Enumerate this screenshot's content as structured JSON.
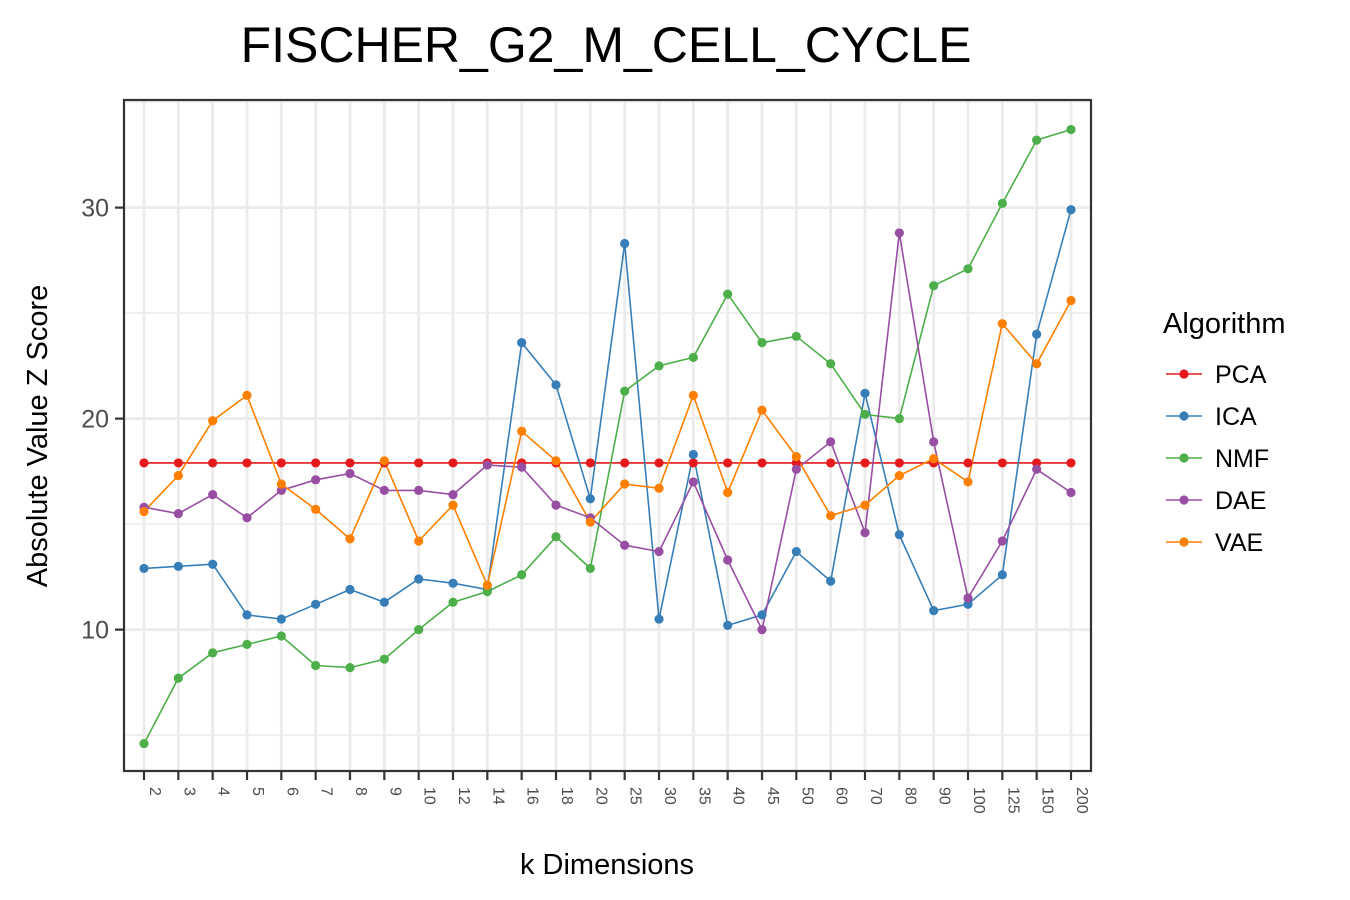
{
  "chart_data": {
    "type": "line",
    "title": "FISCHER_G2_M_CELL_CYCLE",
    "xlabel": "k Dimensions",
    "ylabel": "Absolute Value Z Score",
    "categories": [
      "2",
      "3",
      "4",
      "5",
      "6",
      "7",
      "8",
      "9",
      "10",
      "12",
      "14",
      "16",
      "18",
      "20",
      "25",
      "30",
      "35",
      "40",
      "45",
      "50",
      "60",
      "70",
      "80",
      "90",
      "100",
      "125",
      "150",
      "200"
    ],
    "ylim": [
      3.3,
      35.1
    ],
    "yticks": [
      10,
      20,
      30
    ],
    "grid": true,
    "legend": {
      "title": "Algorithm",
      "placement": "right"
    },
    "series": [
      {
        "name": "PCA",
        "color": "#e41a1c",
        "values": [
          17.9,
          17.9,
          17.9,
          17.9,
          17.9,
          17.9,
          17.9,
          17.9,
          17.9,
          17.9,
          17.9,
          17.9,
          17.9,
          17.9,
          17.9,
          17.9,
          17.9,
          17.9,
          17.9,
          17.9,
          17.9,
          17.9,
          17.9,
          17.9,
          17.9,
          17.9,
          17.9,
          17.9
        ]
      },
      {
        "name": "ICA",
        "color": "#377eb8",
        "values": [
          12.9,
          13.0,
          13.1,
          10.7,
          10.5,
          11.2,
          11.9,
          11.3,
          12.4,
          12.2,
          11.9,
          23.6,
          21.6,
          16.2,
          28.3,
          10.5,
          18.3,
          10.2,
          10.7,
          13.7,
          12.3,
          21.2,
          14.5,
          10.9,
          11.2,
          12.6,
          24.0,
          29.9
        ]
      },
      {
        "name": "NMF",
        "color": "#4daf4a",
        "values": [
          4.6,
          7.7,
          8.9,
          9.3,
          9.7,
          8.3,
          8.2,
          8.6,
          10.0,
          11.3,
          11.8,
          12.6,
          14.4,
          12.9,
          21.3,
          22.5,
          22.9,
          25.9,
          23.6,
          23.9,
          22.6,
          20.2,
          20.0,
          26.3,
          27.1,
          30.2,
          33.2,
          33.7
        ]
      },
      {
        "name": "DAE",
        "color": "#984ea3",
        "values": [
          15.8,
          15.5,
          16.4,
          15.3,
          16.6,
          17.1,
          17.4,
          16.6,
          16.6,
          16.4,
          17.8,
          17.7,
          15.9,
          15.3,
          14.0,
          13.7,
          17.0,
          13.3,
          10.0,
          17.6,
          18.9,
          14.6,
          28.8,
          18.9,
          11.5,
          14.2,
          17.6,
          16.5
        ]
      },
      {
        "name": "VAE",
        "color": "#ff7f00",
        "values": [
          15.6,
          17.3,
          19.9,
          21.1,
          16.9,
          15.7,
          14.3,
          18.0,
          14.2,
          15.9,
          12.1,
          19.4,
          18.0,
          15.1,
          16.9,
          16.7,
          21.1,
          16.5,
          20.4,
          18.2,
          15.4,
          15.9,
          17.3,
          18.1,
          17.0,
          24.5,
          22.6,
          25.6
        ]
      }
    ]
  }
}
